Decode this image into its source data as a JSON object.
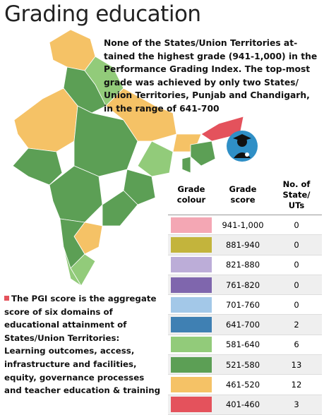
{
  "title": "Grading education",
  "intro": [
    "None of the States/Union Territories at-",
    "tained the highest grade (941-1,000) in the",
    "Performance Grading Index. The top-most",
    "grade was achieved by only two States/",
    "Union Territories, Punjab and Chandigarh,",
    "in the range of 641-700"
  ],
  "note": [
    "The PGI score is the aggregate",
    "score of six domains of",
    "educational attainment of",
    "States/Union Territories:",
    "Learning outcomes, access,",
    "infrastructure and facilities,",
    "equity, governance processes",
    "and teacher education & training"
  ],
  "table": {
    "headers": [
      [
        "Grade",
        "colour"
      ],
      [
        "Grade",
        "score"
      ],
      [
        "No. of",
        "State/",
        "UTs"
      ]
    ],
    "rows": [
      {
        "color": "#f4a7b4",
        "score": "941-1,000",
        "count": 0
      },
      {
        "color": "#c3b43c",
        "score": "881-940",
        "count": 0
      },
      {
        "color": "#bcadd8",
        "score": "821-880",
        "count": 0
      },
      {
        "color": "#7f66ad",
        "score": "761-820",
        "count": 0
      },
      {
        "color": "#a3c8e8",
        "score": "701-760",
        "count": 0
      },
      {
        "color": "#3f80b3",
        "score": "641-700",
        "count": 2
      },
      {
        "color": "#92cb7a",
        "score": "581-640",
        "count": 6
      },
      {
        "color": "#5c9f55",
        "score": "521-580",
        "count": 13
      },
      {
        "color": "#f5c266",
        "score": "461-520",
        "count": 12
      },
      {
        "color": "#e4525c",
        "score": "401-460",
        "count": 3
      }
    ]
  }
}
